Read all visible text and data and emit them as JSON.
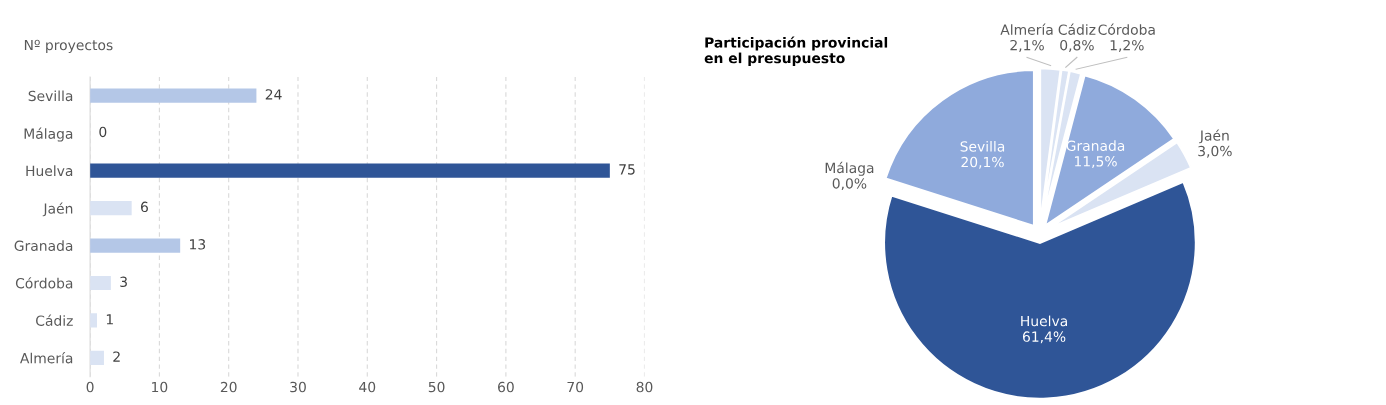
{
  "chart_data": [
    {
      "type": "bar",
      "orientation": "horizontal",
      "title": "Nº proyectos",
      "categories": [
        "Sevilla",
        "Málaga",
        "Huelva",
        "Jaén",
        "Granada",
        "Córdoba",
        "Cádiz",
        "Almería"
      ],
      "values": [
        24,
        0,
        75,
        6,
        13,
        3,
        1,
        2
      ],
      "colors": [
        "#b4c7e7",
        "#b4c7e7",
        "#2f5597",
        "#dae3f3",
        "#b4c7e7",
        "#dae3f3",
        "#dae3f3",
        "#dae3f3"
      ],
      "xlim": [
        0,
        80
      ],
      "xticks": [
        0,
        10,
        20,
        30,
        40,
        50,
        60,
        70,
        80
      ],
      "grid": "x",
      "data_labels": true
    },
    {
      "type": "pie",
      "title": "Participación provincial\nen el presupuesto",
      "categories": [
        "Almería",
        "Cádiz",
        "Córdoba",
        "Granada",
        "Jaén",
        "Huelva",
        "Málaga",
        "Sevilla"
      ],
      "values": [
        2.1,
        0.8,
        1.2,
        11.5,
        3.0,
        61.4,
        0.0,
        20.1
      ],
      "value_labels": [
        "2,1%",
        "0,8%",
        "1,2%",
        "11,5%",
        "3,0%",
        "61,4%",
        "0,0%",
        "20,1%"
      ],
      "colors": [
        "#dae3f3",
        "#dae3f3",
        "#dae3f3",
        "#8faadc",
        "#dae3f3",
        "#2f5597",
        "#8faadc",
        "#8faadc"
      ]
    }
  ]
}
